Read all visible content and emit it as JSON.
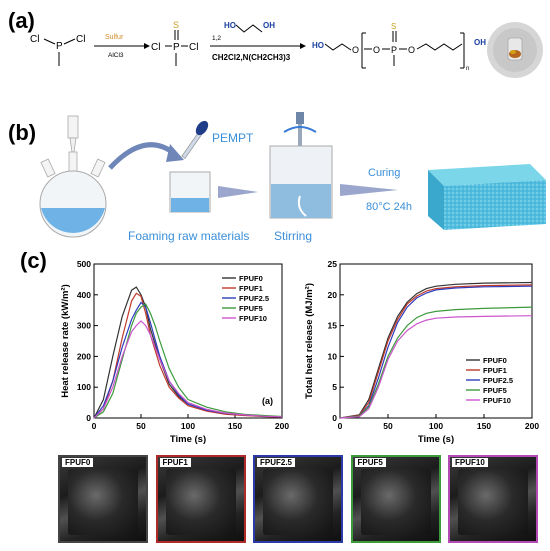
{
  "panel_labels": [
    "(a)",
    "(b)",
    "(c)"
  ],
  "scheme": {
    "reagent1_top": "Sulfur",
    "reagent1_bottom": "AlCl3",
    "reagent2_top": "1,2",
    "reagent2_bottom": "CH2Cl2,N(CH2CH3)3",
    "atoms": {
      "cl": "Cl",
      "p": "P",
      "s": "S",
      "o": "O",
      "ho": "HO",
      "oh": "OH",
      "n": "n"
    }
  },
  "process": {
    "pempt": "PEMPT",
    "foaming": "Foaming raw materials",
    "stirring": "Stirring",
    "curing": "Curing",
    "curing_cond": "80°C 24h"
  },
  "photos": [
    "FPUF0",
    "FPUF1",
    "FPUF2.5",
    "FPUF5",
    "FPUF10"
  ],
  "photo_colors": [
    "#444444",
    "#b02a2a",
    "#2a3aa8",
    "#3c9a3c",
    "#b44ab4"
  ],
  "chart_data": [
    {
      "type": "line",
      "title": "",
      "annotation": "(a)",
      "xlabel": "Time (s)",
      "ylabel": "Heat release rate (kW/m²)",
      "xlim": [
        0,
        200
      ],
      "ylim": [
        0,
        500
      ],
      "xticks": [
        0,
        50,
        100,
        150,
        200
      ],
      "yticks": [
        0,
        100,
        200,
        300,
        400,
        500
      ],
      "legend_position": "top-right",
      "series": [
        {
          "name": "FPUF0",
          "color": "#333333",
          "x": [
            0,
            10,
            20,
            30,
            40,
            45,
            50,
            55,
            60,
            70,
            80,
            90,
            100,
            120,
            140,
            160,
            180,
            200
          ],
          "y": [
            0,
            60,
            200,
            330,
            415,
            425,
            400,
            360,
            290,
            190,
            110,
            70,
            45,
            25,
            15,
            10,
            6,
            4
          ]
        },
        {
          "name": "FPUF1",
          "color": "#c0392b",
          "x": [
            0,
            10,
            20,
            30,
            40,
            45,
            50,
            55,
            60,
            70,
            80,
            90,
            100,
            120,
            140,
            160,
            180,
            200
          ],
          "y": [
            0,
            30,
            120,
            260,
            380,
            405,
            395,
            340,
            270,
            170,
            100,
            65,
            40,
            22,
            12,
            8,
            5,
            3
          ]
        },
        {
          "name": "FPUF2.5",
          "color": "#2e3dbd",
          "x": [
            0,
            10,
            20,
            30,
            40,
            45,
            50,
            55,
            60,
            70,
            80,
            90,
            100,
            120,
            140,
            160,
            180,
            200
          ],
          "y": [
            0,
            40,
            120,
            230,
            320,
            350,
            375,
            360,
            310,
            200,
            120,
            75,
            45,
            25,
            15,
            10,
            6,
            4
          ]
        },
        {
          "name": "FPUF5",
          "color": "#3c9a3c",
          "x": [
            0,
            10,
            20,
            30,
            40,
            45,
            50,
            55,
            60,
            65,
            70,
            80,
            90,
            100,
            120,
            140,
            160,
            180,
            200
          ],
          "y": [
            0,
            20,
            80,
            190,
            300,
            340,
            360,
            370,
            340,
            300,
            250,
            160,
            100,
            60,
            35,
            20,
            12,
            8,
            5
          ]
        },
        {
          "name": "FPUF10",
          "color": "#cc55cc",
          "x": [
            0,
            10,
            20,
            30,
            40,
            45,
            50,
            55,
            60,
            70,
            80,
            90,
            100,
            120,
            140,
            160,
            180,
            200
          ],
          "y": [
            0,
            30,
            100,
            200,
            280,
            300,
            315,
            300,
            270,
            190,
            120,
            80,
            50,
            28,
            16,
            10,
            6,
            4
          ]
        }
      ]
    },
    {
      "type": "line",
      "title": "",
      "xlabel": "Time (s)",
      "ylabel": "Total heat release (MJ/m²)",
      "xlim": [
        0,
        200
      ],
      "ylim": [
        0,
        25
      ],
      "xticks": [
        0,
        50,
        100,
        150,
        200
      ],
      "yticks": [
        0,
        5,
        10,
        15,
        20,
        25
      ],
      "legend_position": "bottom-right",
      "series": [
        {
          "name": "FPUF0",
          "color": "#333333",
          "x": [
            0,
            20,
            30,
            40,
            50,
            60,
            70,
            80,
            90,
            100,
            120,
            150,
            200
          ],
          "y": [
            0,
            0.5,
            3,
            8,
            13,
            16.5,
            18.8,
            20.2,
            21,
            21.4,
            21.7,
            21.9,
            22
          ]
        },
        {
          "name": "FPUF1",
          "color": "#c0392b",
          "x": [
            0,
            20,
            30,
            40,
            50,
            60,
            70,
            80,
            90,
            100,
            120,
            150,
            200
          ],
          "y": [
            0,
            0.4,
            2.5,
            7.5,
            12.5,
            16,
            18.5,
            19.8,
            20.6,
            21,
            21.3,
            21.5,
            21.6
          ]
        },
        {
          "name": "FPUF2.5",
          "color": "#2e3dbd",
          "x": [
            0,
            20,
            30,
            40,
            50,
            60,
            70,
            80,
            90,
            100,
            120,
            150,
            200
          ],
          "y": [
            0,
            0.3,
            2,
            6.5,
            11.5,
            15.5,
            18,
            19.5,
            20.3,
            20.8,
            21.1,
            21.3,
            21.4
          ]
        },
        {
          "name": "FPUF5",
          "color": "#3c9a3c",
          "x": [
            0,
            20,
            30,
            40,
            50,
            60,
            70,
            80,
            90,
            100,
            120,
            150,
            200
          ],
          "y": [
            0,
            0.3,
            1.8,
            5.5,
            10,
            13,
            15,
            16.3,
            17,
            17.3,
            17.6,
            17.8,
            18
          ]
        },
        {
          "name": "FPUF10",
          "color": "#cc55cc",
          "x": [
            0,
            20,
            30,
            40,
            50,
            60,
            70,
            80,
            90,
            100,
            120,
            150,
            200
          ],
          "y": [
            0,
            0.2,
            1.5,
            5,
            9.5,
            12.5,
            14.2,
            15.3,
            15.9,
            16.2,
            16.4,
            16.5,
            16.6
          ]
        }
      ]
    }
  ]
}
